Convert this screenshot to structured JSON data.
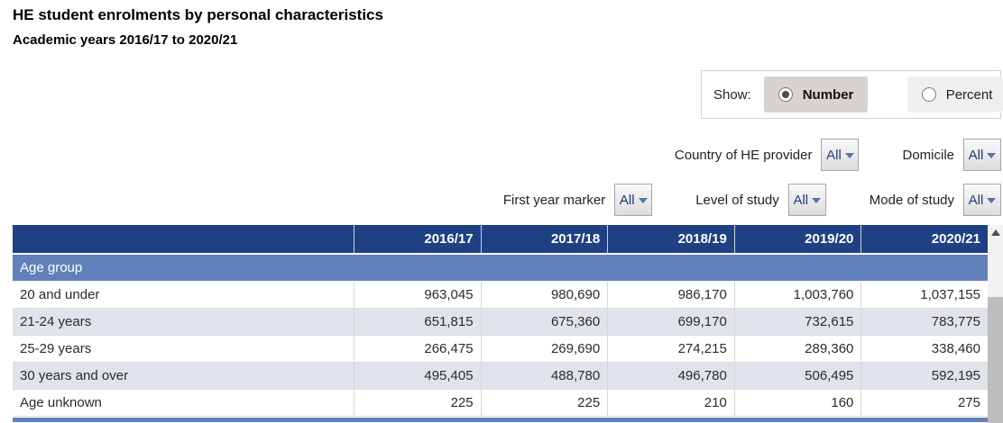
{
  "page": {
    "title": "HE student enrolments by personal characteristics",
    "subtitle": "Academic years 2016/17 to 2020/21"
  },
  "show_toggle": {
    "label": "Show:",
    "options": [
      {
        "label": "Number",
        "selected": true
      },
      {
        "label": "Percent",
        "selected": false
      }
    ]
  },
  "filters": {
    "row1": [
      {
        "label": "Country of HE provider",
        "value": "All"
      },
      {
        "label": "Domicile",
        "value": "All"
      }
    ],
    "row2": [
      {
        "label": "First year marker",
        "value": "All"
      },
      {
        "label": "Level of study",
        "value": "All"
      },
      {
        "label": "Mode of study",
        "value": "All"
      }
    ]
  },
  "table": {
    "columns": [
      "",
      "2016/17",
      "2017/18",
      "2018/19",
      "2019/20",
      "2020/21"
    ],
    "section_label": "Age group",
    "rows": [
      {
        "label": "20 and under",
        "values": [
          "963,045",
          "980,690",
          "986,170",
          "1,003,760",
          "1,037,155"
        ]
      },
      {
        "label": "21-24 years",
        "values": [
          "651,815",
          "675,360",
          "699,170",
          "732,615",
          "783,775"
        ]
      },
      {
        "label": "25-29 years",
        "values": [
          "266,475",
          "269,690",
          "274,215",
          "289,360",
          "338,460"
        ]
      },
      {
        "label": "30 years and over",
        "values": [
          "495,405",
          "488,780",
          "496,780",
          "506,495",
          "592,195"
        ]
      },
      {
        "label": "Age unknown",
        "values": [
          "225",
          "225",
          "210",
          "160",
          "275"
        ]
      }
    ]
  },
  "colors": {
    "header_bg": "#1f4184",
    "section_bg": "#6081b9",
    "alt_row_bg": "#e0e3e9",
    "selected_option_bg": "#d6d3d0",
    "unselected_option_bg": "#f0efee",
    "dropdown_text": "#1d3e75"
  }
}
